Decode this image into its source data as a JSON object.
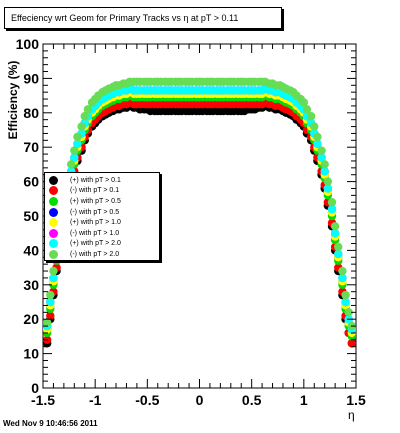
{
  "title": "Effeciency wrt Geom for Primary Tracks vs   η at pT > 0.11",
  "footer": "Wed Nov  9 10:46:56 2011",
  "chart_data": {
    "type": "scatter",
    "xlabel": "η",
    "ylabel": "Efficiency (%)",
    "xlim": [
      -1.5,
      1.5
    ],
    "ylim": [
      0,
      100
    ],
    "x_ticks": [
      "-1.5",
      "-1",
      "-0.5",
      "0",
      "0.5",
      "1",
      "1.5"
    ],
    "y_ticks": [
      "0",
      "10",
      "20",
      "30",
      "40",
      "50",
      "60",
      "70",
      "80",
      "90",
      "100"
    ],
    "grid": false,
    "legend_position": "middle-left",
    "x": [
      -1.46,
      -1.43,
      -1.4,
      -1.37,
      -1.33,
      -1.3,
      -1.27,
      -1.23,
      -1.2,
      -1.17,
      -1.13,
      -1.1,
      -1.07,
      -1.03,
      -1.0,
      -0.97,
      -0.93,
      -0.9,
      -0.87,
      -0.83,
      -0.8,
      -0.77,
      -0.73,
      -0.7,
      -0.67,
      -0.63,
      -0.6,
      -0.57,
      -0.53,
      -0.5,
      -0.47,
      -0.43,
      -0.4,
      -0.37,
      -0.33,
      -0.3,
      -0.27,
      -0.23,
      -0.2,
      -0.17,
      -0.13,
      -0.1,
      -0.07,
      -0.03,
      0.0,
      0.03,
      0.07,
      0.1,
      0.13,
      0.17,
      0.2,
      0.23,
      0.27,
      0.3,
      0.33,
      0.37,
      0.4,
      0.43,
      0.47,
      0.5,
      0.53,
      0.57,
      0.6,
      0.63,
      0.67,
      0.7,
      0.73,
      0.77,
      0.8,
      0.83,
      0.87,
      0.9,
      0.93,
      0.97,
      1.0,
      1.03,
      1.07,
      1.1,
      1.13,
      1.17,
      1.2,
      1.23,
      1.27,
      1.3,
      1.33,
      1.37,
      1.4,
      1.43,
      1.46
    ],
    "series": [
      {
        "name": "(+) with pT > 0.1",
        "color": "#000000",
        "values": [
          13,
          20,
          27,
          34,
          40,
          47,
          53,
          58,
          62,
          66,
          69,
          72,
          74,
          76,
          77,
          78,
          79,
          79.5,
          80,
          80.5,
          81,
          81,
          81.5,
          81.5,
          82,
          81.5,
          81.5,
          81,
          81,
          81,
          80.5,
          80.5,
          80.5,
          80.5,
          80.5,
          80.5,
          80.5,
          80.5,
          80.5,
          80.5,
          80.5,
          80.5,
          80.5,
          80.5,
          80.5,
          80.5,
          80.5,
          80.5,
          80.5,
          80.5,
          80.5,
          80.5,
          80.5,
          80.5,
          80.5,
          80.5,
          80.5,
          80.5,
          81,
          81,
          81,
          81.5,
          81.5,
          82,
          81.5,
          81.5,
          81,
          81,
          80.5,
          80,
          79.5,
          79,
          78,
          77,
          76,
          74,
          72,
          69,
          66,
          62,
          58,
          53,
          47,
          40,
          34,
          27,
          20,
          16,
          13
        ]
      },
      {
        "name": "(-) with pT > 0.1",
        "color": "#ff0000",
        "values": [
          14,
          21,
          28,
          35,
          41,
          48,
          54,
          59,
          63,
          67,
          70,
          73,
          75,
          77,
          78,
          79,
          80,
          80.5,
          81,
          81.5,
          82,
          82,
          82.5,
          82.5,
          83,
          82.5,
          82.5,
          82.5,
          82.5,
          82.5,
          82.5,
          82.5,
          82.5,
          82.5,
          82.5,
          82.5,
          82.5,
          82.5,
          82.5,
          82.5,
          82.5,
          82.5,
          82.5,
          82.5,
          82.5,
          82.5,
          82.5,
          82.5,
          82.5,
          82.5,
          82.5,
          82.5,
          82.5,
          82.5,
          82.5,
          82.5,
          82.5,
          82.5,
          82.5,
          82.5,
          82.5,
          82.5,
          82.5,
          83,
          82.5,
          82.5,
          82,
          82,
          81.5,
          81,
          80.5,
          80,
          79,
          78,
          77,
          75,
          73,
          70,
          67,
          63,
          59,
          54,
          48,
          41,
          35,
          28,
          21,
          16,
          13
        ]
      },
      {
        "name": "(+) with pT > 0.5",
        "color": "#00dd00",
        "values": [
          16,
          23,
          30,
          37,
          43,
          50,
          56,
          61,
          65,
          69,
          72,
          75,
          77,
          79,
          80,
          81,
          82,
          82.5,
          83,
          83.5,
          84,
          84,
          84.5,
          84.5,
          85,
          84.5,
          84.5,
          84.5,
          84.5,
          84.5,
          84.5,
          84.5,
          84.5,
          84.5,
          84.5,
          84.5,
          84.5,
          84.5,
          84.5,
          84.5,
          84.5,
          84.5,
          84.5,
          84.5,
          84.5,
          84.5,
          84.5,
          84.5,
          84.5,
          84.5,
          84.5,
          84.5,
          84.5,
          84.5,
          84.5,
          84.5,
          84.5,
          84.5,
          84.5,
          84.5,
          84.5,
          84.5,
          84.5,
          85,
          84.5,
          84.5,
          84,
          84,
          83.5,
          83,
          82.5,
          82,
          81,
          80,
          79,
          77,
          75,
          72,
          69,
          65,
          61,
          56,
          50,
          43,
          37,
          30,
          23,
          18,
          15
        ]
      },
      {
        "name": "(-) with pT > 0.5",
        "color": "#0000ff",
        "values": [
          17,
          24,
          31,
          38,
          44,
          51,
          57,
          62,
          66,
          70,
          73,
          76,
          78,
          80,
          81,
          82,
          83,
          83.5,
          84,
          84.5,
          85,
          85,
          85.5,
          85.5,
          86,
          85.5,
          85.5,
          85.5,
          85.5,
          85.5,
          85.5,
          85.5,
          85.5,
          85.5,
          85.5,
          85.5,
          85.5,
          85.5,
          85.5,
          85.5,
          85.5,
          85.5,
          85.5,
          85.5,
          85.5,
          85.5,
          85.5,
          85.5,
          85.5,
          85.5,
          85.5,
          85.5,
          85.5,
          85.5,
          85.5,
          85.5,
          85.5,
          85.5,
          85.5,
          85.5,
          85.5,
          85.5,
          85.5,
          86,
          85.5,
          85.5,
          85,
          85,
          84.5,
          84,
          83.5,
          83,
          82,
          81,
          80,
          78,
          76,
          73,
          70,
          66,
          62,
          57,
          51,
          44,
          38,
          31,
          24,
          19,
          16
        ]
      },
      {
        "name": "(+) with pT > 1.0",
        "color": "#ffff00",
        "values": [
          17,
          24,
          31,
          38,
          44,
          51,
          57,
          62,
          66,
          70,
          73,
          76,
          78,
          80,
          81,
          82,
          83,
          83.5,
          84,
          84.5,
          85,
          85,
          85.5,
          85.5,
          86,
          85.5,
          85.5,
          85.5,
          85.5,
          85.5,
          85.5,
          85.5,
          85.5,
          85.5,
          85.5,
          85.5,
          85.5,
          85.5,
          85.5,
          85.5,
          85.5,
          85.5,
          85.5,
          85.5,
          85.5,
          85.5,
          85.5,
          85.5,
          85.5,
          85.5,
          85.5,
          85.5,
          85.5,
          85.5,
          85.5,
          85.5,
          85.5,
          85.5,
          85.5,
          85.5,
          85.5,
          85.5,
          85.5,
          86,
          85.5,
          85.5,
          85,
          85,
          84.5,
          84,
          83.5,
          83,
          82,
          81,
          80,
          78,
          76,
          73,
          70,
          66,
          62,
          57,
          51,
          44,
          38,
          31,
          24,
          19,
          16
        ]
      },
      {
        "name": "(-) with pT > 1.0",
        "color": "#ff00ff",
        "values": [
          18,
          25,
          32,
          39,
          45,
          52,
          58,
          63,
          67,
          71,
          74,
          77,
          79,
          81,
          82,
          83,
          84,
          84.5,
          85,
          85.5,
          86,
          86,
          86.5,
          86.5,
          87,
          86.5,
          86.5,
          86.5,
          86.5,
          86.5,
          86.5,
          86.5,
          86.5,
          86.5,
          86.5,
          86.5,
          86.5,
          86.5,
          86.5,
          86.5,
          86.5,
          86.5,
          86.5,
          86.5,
          86.5,
          86.5,
          86.5,
          86.5,
          86.5,
          86.5,
          86.5,
          86.5,
          86.5,
          86.5,
          86.5,
          86.5,
          86.5,
          86.5,
          86.5,
          86.5,
          86.5,
          86.5,
          86.5,
          87,
          86.5,
          86.5,
          86,
          86,
          85.5,
          85,
          84.5,
          84,
          83,
          82,
          81,
          79,
          77,
          74,
          71,
          67,
          63,
          58,
          52,
          45,
          39,
          32,
          25,
          20,
          17
        ]
      },
      {
        "name": "(+) with pT > 2.0",
        "color": "#00ffff",
        "values": [
          18,
          25,
          32,
          39,
          45,
          52,
          58,
          63,
          67,
          71,
          74,
          77,
          79,
          81,
          82,
          83,
          84,
          84.5,
          85,
          85.5,
          86,
          86,
          86.5,
          86.5,
          87,
          86.5,
          86.5,
          86.5,
          86.5,
          86.5,
          86.5,
          86.5,
          86.5,
          86.5,
          86.5,
          86.5,
          86.5,
          86.5,
          86.5,
          86.5,
          86.5,
          86.5,
          86.5,
          86.5,
          86.5,
          86.5,
          86.5,
          86.5,
          86.5,
          86.5,
          86.5,
          86.5,
          86.5,
          86.5,
          86.5,
          86.5,
          86.5,
          86.5,
          86.5,
          86.5,
          86.5,
          86.5,
          86.5,
          87,
          86.5,
          86.5,
          86,
          86,
          85.5,
          85,
          84.5,
          84,
          83,
          82,
          81,
          79,
          77,
          74,
          71,
          67,
          63,
          58,
          52,
          45,
          39,
          32,
          25,
          20,
          17
        ]
      },
      {
        "name": "(-) with pT > 2.0",
        "color": "#66dd55",
        "values": [
          19,
          27,
          34,
          41,
          47,
          54,
          60,
          65,
          69,
          73,
          76,
          79,
          81,
          83,
          84,
          85,
          86,
          86.5,
          87,
          87.5,
          88,
          88,
          88.5,
          88.5,
          89,
          89,
          89,
          89,
          89,
          89,
          89,
          89,
          89,
          89,
          89,
          89,
          89,
          89,
          89,
          89,
          89,
          89,
          89,
          89,
          89,
          89,
          89,
          89,
          89,
          89,
          89,
          89,
          89,
          89,
          89,
          89,
          89,
          89,
          89,
          89,
          89,
          89,
          89,
          89,
          88.5,
          88.5,
          88,
          88,
          87.5,
          87,
          86.5,
          86,
          85,
          84,
          83,
          81,
          79,
          76,
          73,
          69,
          65,
          60,
          54,
          47,
          41,
          34,
          27,
          22,
          18
        ]
      }
    ]
  }
}
